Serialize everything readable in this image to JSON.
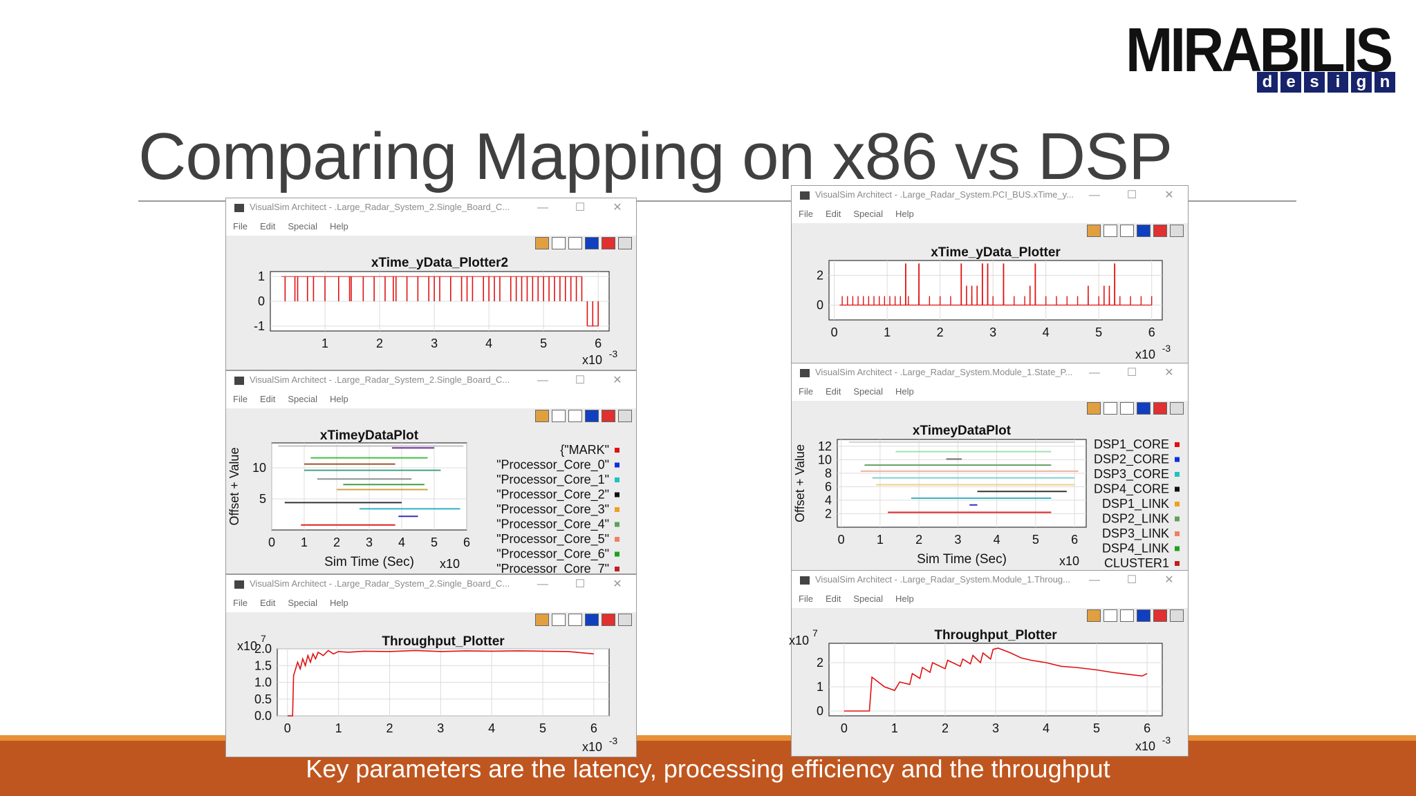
{
  "slide": {
    "title": "Comparing Mapping on x86 vs DSP",
    "footer": "Key parameters are the latency, processing efficiency and the throughput"
  },
  "logo": {
    "main": "MIRABILIS",
    "sub": [
      "d",
      "e",
      "s",
      "i",
      "g",
      "n"
    ]
  },
  "menu": [
    "File",
    "Edit",
    "Special",
    "Help"
  ],
  "window_controls": [
    "—",
    "☐",
    "✕"
  ],
  "toolbar_icons": [
    "palette-icon",
    "save-icon",
    "print-icon",
    "fill-icon",
    "reset-icon",
    "settings-icon"
  ],
  "colors": {
    "accent_orange": "#c0561f",
    "plot_red": "#e01010"
  },
  "windows": [
    {
      "id": "x86-xtime-ydata",
      "title": "VisualSim Architect - .Large_Radar_System_2.Single_Board_C...",
      "chart_data": {
        "type": "line",
        "title": "xTime_yData_Plotter2",
        "xlabel": "",
        "ylabel": "",
        "x_ticks": [
          "1",
          "2",
          "3",
          "4",
          "5",
          "6"
        ],
        "y_ticks": [
          "1",
          "0",
          "-1"
        ],
        "x_exponent": "x10",
        "x_exponent_power": "-3",
        "xlim": [
          0.0,
          0.0062
        ],
        "ylim": [
          -1.2,
          1.2
        ],
        "spikes_up": [
          0.00027,
          0.00045,
          0.0005,
          0.00068,
          0.00079,
          0.001,
          0.00125,
          0.00145,
          0.00148,
          0.0017,
          0.0019,
          0.0021,
          0.00225,
          0.0023,
          0.0025,
          0.0027,
          0.0029,
          0.003,
          0.0031,
          0.0033,
          0.0035,
          0.0036,
          0.0037,
          0.0039,
          0.004,
          0.0041,
          0.0042,
          0.0044,
          0.0045,
          0.0046,
          0.0047,
          0.0048,
          0.0049,
          0.005,
          0.0051,
          0.0052,
          0.0053,
          0.0054,
          0.0055,
          0.0056,
          0.0057
        ],
        "spikes_down": [
          0.0058,
          0.0059,
          0.006
        ]
      }
    },
    {
      "id": "x86-state-plot",
      "title": "VisualSim Architect - .Large_Radar_System_2.Single_Board_C...",
      "chart_data": {
        "type": "line",
        "title": "xTimeyDataPlot",
        "xlabel": "Sim Time (Sec)",
        "ylabel": "Offset + Value",
        "x_ticks": [
          "0",
          "1",
          "2",
          "3",
          "4",
          "5",
          "6"
        ],
        "y_ticks": [
          "10",
          "5"
        ],
        "x_exponent": "x10",
        "xlim": [
          0,
          6
        ],
        "ylim": [
          0,
          14
        ],
        "legend": [
          "{\"MARK\"",
          "\"Processor_Core_0\"",
          "\"Processor_Core_1\"",
          "\"Processor_Core_2\"",
          "\"Processor_Core_3\"",
          "\"Processor_Core_4\"",
          "\"Processor_Core_5\"",
          "\"Processor_Core_6\"",
          "\"Processor_Core_7\""
        ],
        "legend_colors": [
          "#e01010",
          "#1030e0",
          "#20c0c0",
          "#111111",
          "#f0a020",
          "#60a060",
          "#f08060",
          "#20a020",
          "#c02020"
        ],
        "segments": [
          {
            "y": 13.5,
            "x0": 0.2,
            "x1": 5.9,
            "color": "#c0c0c0"
          },
          {
            "y": 13.2,
            "x0": 3.7,
            "x1": 5.0,
            "color": "#7030a0"
          },
          {
            "y": 11.6,
            "x0": 1.2,
            "x1": 4.8,
            "color": "#40c040"
          },
          {
            "y": 10.6,
            "x0": 1.0,
            "x1": 3.8,
            "color": "#a05030"
          },
          {
            "y": 9.6,
            "x0": 1.0,
            "x1": 5.2,
            "color": "#40a080"
          },
          {
            "y": 8.2,
            "x0": 1.4,
            "x1": 4.3,
            "color": "#909090"
          },
          {
            "y": 7.3,
            "x0": 2.2,
            "x1": 4.7,
            "color": "#40a040"
          },
          {
            "y": 6.5,
            "x0": 2.0,
            "x1": 4.8,
            "color": "#d0a040"
          },
          {
            "y": 4.4,
            "x0": 0.4,
            "x1": 4.0,
            "color": "#333333"
          },
          {
            "y": 3.4,
            "x0": 2.7,
            "x1": 5.8,
            "color": "#30b0c0"
          },
          {
            "y": 2.2,
            "x0": 3.9,
            "x1": 4.5,
            "color": "#3030c0"
          },
          {
            "y": 0.8,
            "x0": 0.9,
            "x1": 3.8,
            "color": "#e02020"
          }
        ]
      }
    },
    {
      "id": "x86-throughput",
      "title": "VisualSim Architect - .Large_Radar_System_2.Single_Board_C...",
      "chart_data": {
        "type": "line",
        "title": "Throughput_Plotter",
        "xlabel": "",
        "ylabel": "",
        "y_exponent": "x10",
        "y_exponent_power": "7",
        "x_exponent": "x10",
        "x_exponent_power": "-3",
        "x_ticks": [
          "0",
          "1",
          "2",
          "3",
          "4",
          "5",
          "6"
        ],
        "y_ticks": [
          "2.0",
          "1.5",
          "1.0",
          "0.5",
          "0.0"
        ],
        "xlim": [
          -0.2,
          6.3
        ],
        "ylim": [
          0,
          2.0
        ],
        "x": [
          0.0,
          0.1,
          0.12,
          0.2,
          0.25,
          0.3,
          0.35,
          0.4,
          0.45,
          0.5,
          0.55,
          0.6,
          0.7,
          0.8,
          0.9,
          1.0,
          1.2,
          1.5,
          2.0,
          2.5,
          3.0,
          3.5,
          4.0,
          4.5,
          5.0,
          5.5,
          6.0
        ],
        "y": [
          0.0,
          0.0,
          1.2,
          1.6,
          1.4,
          1.7,
          1.5,
          1.8,
          1.6,
          1.85,
          1.7,
          1.9,
          1.8,
          1.95,
          1.85,
          1.92,
          1.9,
          1.93,
          1.92,
          1.95,
          1.92,
          1.94,
          1.93,
          1.94,
          1.93,
          1.92,
          1.85
        ]
      }
    },
    {
      "id": "dsp-xtime-ydata",
      "title": "VisualSim Architect - .Large_Radar_System.PCI_BUS.xTime_y...",
      "chart_data": {
        "type": "line",
        "title": "xTime_yData_Plotter",
        "xlabel": "",
        "ylabel": "",
        "x_ticks": [
          "0",
          "1",
          "2",
          "3",
          "4",
          "5",
          "6"
        ],
        "y_ticks": [
          "2",
          "0"
        ],
        "x_exponent": "x10",
        "x_exponent_power": "-3",
        "xlim": [
          -0.0001,
          0.0062
        ],
        "ylim": [
          -1,
          3
        ],
        "baseline": 0,
        "spikes_small": [
          0.00015,
          0.00025,
          0.00035,
          0.00045,
          0.00055,
          0.00065,
          0.00075,
          0.00085,
          0.00095,
          0.00105,
          0.00115,
          0.00125,
          0.0014,
          0.0016,
          0.0018,
          0.002,
          0.0022,
          0.0024,
          0.0026,
          0.0028,
          0.003,
          0.0032,
          0.0034,
          0.0036,
          0.0038,
          0.004,
          0.0042,
          0.0044,
          0.0046,
          0.0048,
          0.005,
          0.0052,
          0.0054,
          0.0056,
          0.0058,
          0.006
        ],
        "spikes_medium": [
          0.0025,
          0.0026,
          0.0027,
          0.0037,
          0.0048,
          0.0051,
          0.0052
        ],
        "spikes_tall": [
          0.00135,
          0.0016,
          0.0024,
          0.0028,
          0.0029,
          0.0032,
          0.0038,
          0.0053
        ]
      }
    },
    {
      "id": "dsp-state-plot",
      "title": "VisualSim Architect - .Large_Radar_System.Module_1.State_P...",
      "chart_data": {
        "type": "line",
        "title": "xTimeyDataPlot",
        "xlabel": "Sim Time (Sec)",
        "ylabel": "Offset + Value",
        "x_ticks": [
          "0",
          "1",
          "2",
          "3",
          "4",
          "5",
          "6"
        ],
        "y_ticks": [
          "12",
          "10",
          "8",
          "6",
          "4",
          "2"
        ],
        "x_exponent": "x10",
        "xlim": [
          -0.1,
          6.3
        ],
        "ylim": [
          0,
          13
        ],
        "legend": [
          "DSP1_CORE",
          "DSP2_CORE",
          "DSP3_CORE",
          "DSP4_CORE",
          "DSP1_LINK",
          "DSP2_LINK",
          "DSP3_LINK",
          "DSP4_LINK",
          "CLUSTER1"
        ],
        "legend_colors": [
          "#e01010",
          "#1030e0",
          "#20c0c0",
          "#111111",
          "#f0a020",
          "#60a060",
          "#f08060",
          "#20a020",
          "#c02020"
        ],
        "segments": [
          {
            "y": 12.6,
            "x0": 0.2,
            "x1": 6.0,
            "color": "#d0d0d0"
          },
          {
            "y": 11.2,
            "x0": 1.4,
            "x1": 5.4,
            "color": "#a0e0b0"
          },
          {
            "y": 10.1,
            "x0": 2.7,
            "x1": 3.1,
            "color": "#707070"
          },
          {
            "y": 9.2,
            "x0": 0.6,
            "x1": 5.4,
            "color": "#60a060"
          },
          {
            "y": 8.3,
            "x0": 0.5,
            "x1": 6.1,
            "color": "#f0b0a0"
          },
          {
            "y": 7.3,
            "x0": 0.8,
            "x1": 6.0,
            "color": "#80d0d0"
          },
          {
            "y": 6.3,
            "x0": 0.9,
            "x1": 6.0,
            "color": "#f0d080"
          },
          {
            "y": 5.3,
            "x0": 3.5,
            "x1": 5.8,
            "color": "#333333"
          },
          {
            "y": 4.3,
            "x0": 1.8,
            "x1": 5.4,
            "color": "#40b0c0"
          },
          {
            "y": 3.3,
            "x0": 3.3,
            "x1": 3.5,
            "color": "#3030c0"
          },
          {
            "y": 2.2,
            "x0": 1.2,
            "x1": 5.4,
            "color": "#e02020"
          }
        ]
      }
    },
    {
      "id": "dsp-throughput",
      "title": "VisualSim Architect - .Large_Radar_System.Module_1.Throug...",
      "chart_data": {
        "type": "line",
        "title": "Throughput_Plotter",
        "xlabel": "",
        "ylabel": "",
        "y_exponent": "x10",
        "y_exponent_power": "7",
        "x_exponent": "x10",
        "x_exponent_power": "-3",
        "x_ticks": [
          "0",
          "1",
          "2",
          "3",
          "4",
          "5",
          "6"
        ],
        "y_ticks": [
          "2",
          "1",
          "0"
        ],
        "xlim": [
          -0.3,
          6.3
        ],
        "ylim": [
          -0.2,
          2.8
        ],
        "x": [
          0.0,
          0.5,
          0.55,
          0.8,
          1.0,
          1.1,
          1.3,
          1.35,
          1.5,
          1.55,
          1.7,
          1.75,
          2.0,
          2.05,
          2.3,
          2.35,
          2.5,
          2.55,
          2.7,
          2.75,
          2.9,
          2.95,
          3.05,
          3.3,
          3.5,
          3.7,
          4.0,
          4.3,
          4.6,
          5.0,
          5.3,
          5.5,
          5.9,
          6.0
        ],
        "y": [
          0.0,
          0.0,
          1.4,
          1.0,
          0.85,
          1.2,
          1.1,
          1.55,
          1.35,
          1.8,
          1.6,
          2.0,
          1.75,
          2.1,
          1.85,
          2.15,
          1.95,
          2.3,
          2.0,
          2.4,
          2.15,
          2.55,
          2.6,
          2.4,
          2.2,
          2.1,
          2.0,
          1.85,
          1.8,
          1.7,
          1.6,
          1.55,
          1.45,
          1.55
        ]
      }
    }
  ]
}
